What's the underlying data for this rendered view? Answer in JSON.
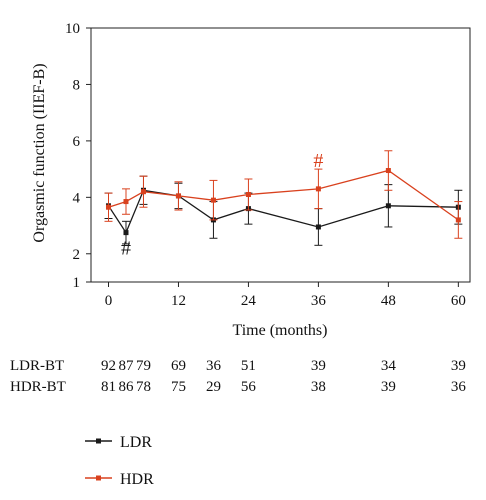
{
  "chart_data": {
    "type": "line",
    "xlabel": "Time (months)",
    "ylabel": "Orgasmic function (IIEF-B)",
    "xlim": [
      -3,
      62
    ],
    "ylim": [
      1,
      10
    ],
    "x_ticks": [
      0,
      12,
      24,
      36,
      48,
      60
    ],
    "y_ticks": [
      1,
      2,
      4,
      6,
      8,
      10
    ],
    "grid": false,
    "series": [
      {
        "name": "LDR",
        "color": "#1a1a1a",
        "x": [
          0,
          3,
          6,
          12,
          18,
          24,
          36,
          48,
          60
        ],
        "y": [
          3.7,
          2.75,
          4.25,
          4.05,
          3.2,
          3.6,
          2.95,
          3.7,
          3.65
        ],
        "err": [
          0.45,
          0.4,
          0.5,
          0.45,
          0.65,
          0.55,
          0.65,
          0.75,
          0.6
        ]
      },
      {
        "name": "HDR",
        "color": "#d9411e",
        "x": [
          0,
          3,
          6,
          12,
          18,
          24,
          36,
          48,
          60
        ],
        "y": [
          3.65,
          3.85,
          4.2,
          4.05,
          3.9,
          4.1,
          4.3,
          4.95,
          3.2
        ],
        "err": [
          0.5,
          0.45,
          0.55,
          0.5,
          0.7,
          0.55,
          0.7,
          0.7,
          0.65
        ]
      }
    ],
    "annotations": [
      {
        "text": "#",
        "x": 3,
        "y": 2.25,
        "color": "#1a1a1a"
      },
      {
        "text": "#",
        "x": 36,
        "y": 5.35,
        "color": "#d9411e"
      }
    ],
    "at_risk": {
      "rows": [
        {
          "label": "LDR-BT",
          "values": [
            "92",
            "87",
            "79",
            "69",
            "36",
            "51",
            "39",
            "34",
            "39"
          ]
        },
        {
          "label": "HDR-BT",
          "values": [
            "81",
            "86",
            "78",
            "75",
            "29",
            "56",
            "38",
            "39",
            "36"
          ]
        }
      ]
    },
    "legend": [
      {
        "label": "LDR",
        "color": "#1a1a1a"
      },
      {
        "label": "HDR",
        "color": "#d9411e"
      }
    ]
  }
}
